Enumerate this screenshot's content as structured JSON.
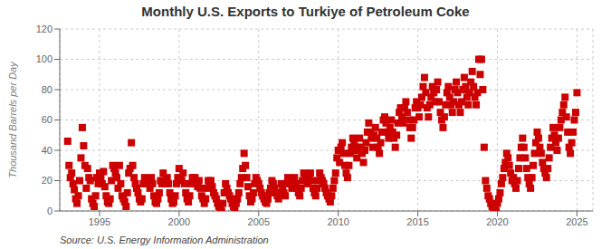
{
  "chart_data": {
    "type": "scatter",
    "title": "Monthly U.S. Exports to Turkiye of Petroleum Coke",
    "ylabel": "Thousand Barrels per Day",
    "annotations": [
      "Source: U.S. Energy Information Administration"
    ],
    "color": "#CC0000",
    "marker": "square",
    "grid": true,
    "xlim": [
      1992.5,
      2026.0
    ],
    "ylim": [
      0,
      120
    ],
    "xticks": [
      1995,
      2000,
      2005,
      2010,
      2015,
      2020,
      2025
    ],
    "yticks": [
      0,
      20,
      40,
      60,
      80,
      100,
      120
    ],
    "x": [
      1993.0,
      1993.083,
      1993.167,
      1993.25,
      1993.333,
      1993.417,
      1993.5,
      1993.583,
      1993.667,
      1993.75,
      1993.833,
      1993.917,
      1994.0,
      1994.083,
      1994.167,
      1994.25,
      1994.333,
      1994.417,
      1994.5,
      1994.583,
      1994.667,
      1994.75,
      1994.833,
      1994.917,
      1995.0,
      1995.083,
      1995.167,
      1995.25,
      1995.333,
      1995.417,
      1995.5,
      1995.583,
      1995.667,
      1995.75,
      1995.833,
      1995.917,
      1996.0,
      1996.083,
      1996.167,
      1996.25,
      1996.333,
      1996.417,
      1996.5,
      1996.583,
      1996.667,
      1996.75,
      1996.833,
      1996.917,
      1997.0,
      1997.083,
      1997.167,
      1997.25,
      1997.333,
      1997.417,
      1997.5,
      1997.583,
      1997.667,
      1997.75,
      1997.833,
      1997.917,
      1998.0,
      1998.083,
      1998.167,
      1998.25,
      1998.333,
      1998.417,
      1998.5,
      1998.583,
      1998.667,
      1998.75,
      1998.833,
      1998.917,
      1999.0,
      1999.083,
      1999.167,
      1999.25,
      1999.333,
      1999.417,
      1999.5,
      1999.583,
      1999.667,
      1999.75,
      1999.833,
      1999.917,
      2000.0,
      2000.083,
      2000.167,
      2000.25,
      2000.333,
      2000.417,
      2000.5,
      2000.583,
      2000.667,
      2000.75,
      2000.833,
      2000.917,
      2001.0,
      2001.083,
      2001.167,
      2001.25,
      2001.333,
      2001.417,
      2001.5,
      2001.583,
      2001.667,
      2001.75,
      2001.833,
      2001.917,
      2002.0,
      2002.083,
      2002.167,
      2002.25,
      2002.333,
      2002.417,
      2002.5,
      2002.583,
      2002.667,
      2002.75,
      2002.833,
      2002.917,
      2003.0,
      2003.083,
      2003.167,
      2003.25,
      2003.333,
      2003.417,
      2003.5,
      2003.583,
      2003.667,
      2003.75,
      2003.833,
      2003.917,
      2004.0,
      2004.083,
      2004.167,
      2004.25,
      2004.333,
      2004.417,
      2004.5,
      2004.583,
      2004.667,
      2004.75,
      2004.833,
      2004.917,
      2005.0,
      2005.083,
      2005.167,
      2005.25,
      2005.333,
      2005.417,
      2005.5,
      2005.583,
      2005.667,
      2005.75,
      2005.833,
      2005.917,
      2006.0,
      2006.083,
      2006.167,
      2006.25,
      2006.333,
      2006.417,
      2006.5,
      2006.583,
      2006.667,
      2006.75,
      2006.833,
      2006.917,
      2007.0,
      2007.083,
      2007.167,
      2007.25,
      2007.333,
      2007.417,
      2007.5,
      2007.583,
      2007.667,
      2007.75,
      2007.833,
      2007.917,
      2008.0,
      2008.083,
      2008.167,
      2008.25,
      2008.333,
      2008.417,
      2008.5,
      2008.583,
      2008.667,
      2008.75,
      2008.833,
      2008.917,
      2009.0,
      2009.083,
      2009.167,
      2009.25,
      2009.333,
      2009.417,
      2009.5,
      2009.583,
      2009.667,
      2009.75,
      2009.833,
      2009.917,
      2010.0,
      2010.083,
      2010.167,
      2010.25,
      2010.333,
      2010.417,
      2010.5,
      2010.583,
      2010.667,
      2010.75,
      2010.833,
      2010.917,
      2011.0,
      2011.083,
      2011.167,
      2011.25,
      2011.333,
      2011.417,
      2011.5,
      2011.583,
      2011.667,
      2011.75,
      2011.833,
      2011.917,
      2012.0,
      2012.083,
      2012.167,
      2012.25,
      2012.333,
      2012.417,
      2012.5,
      2012.583,
      2012.667,
      2012.75,
      2012.833,
      2012.917,
      2013.0,
      2013.083,
      2013.167,
      2013.25,
      2013.333,
      2013.417,
      2013.5,
      2013.583,
      2013.667,
      2013.75,
      2013.833,
      2013.917,
      2014.0,
      2014.083,
      2014.167,
      2014.25,
      2014.333,
      2014.417,
      2014.5,
      2014.583,
      2014.667,
      2014.75,
      2014.833,
      2014.917,
      2015.0,
      2015.083,
      2015.167,
      2015.25,
      2015.333,
      2015.417,
      2015.5,
      2015.583,
      2015.667,
      2015.75,
      2015.833,
      2015.917,
      2016.0,
      2016.083,
      2016.167,
      2016.25,
      2016.333,
      2016.417,
      2016.5,
      2016.583,
      2016.667,
      2016.75,
      2016.833,
      2016.917,
      2017.0,
      2017.083,
      2017.167,
      2017.25,
      2017.333,
      2017.417,
      2017.5,
      2017.583,
      2017.667,
      2017.75,
      2017.833,
      2017.917,
      2018.0,
      2018.083,
      2018.167,
      2018.25,
      2018.333,
      2018.417,
      2018.5,
      2018.583,
      2018.667,
      2018.75,
      2018.833,
      2018.917,
      2019.0,
      2019.083,
      2019.167,
      2019.25,
      2019.333,
      2019.417,
      2019.5,
      2019.583,
      2019.667,
      2019.75,
      2019.833,
      2019.917,
      2020.0,
      2020.083,
      2020.167,
      2020.25,
      2020.333,
      2020.417,
      2020.5,
      2020.583,
      2020.667,
      2020.75,
      2020.833,
      2020.917,
      2021.0,
      2021.083,
      2021.167,
      2021.25,
      2021.333,
      2021.417,
      2021.5,
      2021.583,
      2021.667,
      2021.75,
      2021.833,
      2021.917,
      2022.0,
      2022.083,
      2022.167,
      2022.25,
      2022.333,
      2022.417,
      2022.5,
      2022.583,
      2022.667,
      2022.75,
      2022.833,
      2022.917,
      2023.0,
      2023.083,
      2023.167,
      2023.25,
      2023.333,
      2023.417,
      2023.5,
      2023.583,
      2023.667,
      2023.75,
      2023.833,
      2023.917,
      2024.0,
      2024.083,
      2024.167,
      2024.25,
      2024.333,
      2024.417,
      2024.5,
      2024.583,
      2024.667,
      2024.75,
      2024.833,
      2024.917,
      2025.0
    ],
    "values": [
      46,
      30,
      22,
      25,
      18,
      14,
      8,
      5,
      10,
      20,
      35,
      55,
      43,
      30,
      15,
      28,
      22,
      20,
      8,
      5,
      3,
      10,
      22,
      18,
      25,
      22,
      18,
      26,
      16,
      10,
      6,
      5,
      8,
      20,
      30,
      28,
      25,
      22,
      15,
      30,
      18,
      10,
      8,
      6,
      3,
      12,
      25,
      28,
      45,
      30,
      22,
      18,
      15,
      12,
      8,
      6,
      8,
      18,
      22,
      18,
      20,
      18,
      15,
      22,
      18,
      10,
      6,
      5,
      8,
      12,
      20,
      18,
      25,
      20,
      18,
      22,
      18,
      12,
      8,
      5,
      6,
      10,
      18,
      22,
      28,
      22,
      20,
      25,
      18,
      12,
      8,
      6,
      10,
      18,
      22,
      20,
      22,
      18,
      16,
      20,
      15,
      10,
      8,
      5,
      8,
      15,
      20,
      18,
      20,
      16,
      12,
      10,
      8,
      5,
      3,
      1,
      0,
      5,
      12,
      18,
      15,
      12,
      10,
      8,
      5,
      3,
      2,
      5,
      8,
      12,
      18,
      22,
      28,
      38,
      30,
      22,
      16,
      10,
      6,
      8,
      12,
      18,
      22,
      20,
      18,
      15,
      12,
      10,
      8,
      6,
      5,
      8,
      12,
      15,
      20,
      18,
      15,
      12,
      10,
      8,
      12,
      18,
      15,
      12,
      10,
      18,
      22,
      20,
      18,
      15,
      20,
      22,
      18,
      15,
      12,
      10,
      15,
      20,
      25,
      22,
      20,
      18,
      22,
      25,
      20,
      15,
      12,
      10,
      15,
      20,
      25,
      22,
      20,
      18,
      15,
      12,
      10,
      8,
      6,
      10,
      15,
      20,
      25,
      35,
      40,
      32,
      42,
      45,
      38,
      30,
      25,
      22,
      30,
      38,
      42,
      48,
      45,
      40,
      35,
      42,
      48,
      42,
      38,
      32,
      40,
      45,
      52,
      58,
      52,
      48,
      42,
      50,
      55,
      48,
      42,
      38,
      45,
      52,
      60,
      62,
      58,
      52,
      48,
      55,
      60,
      52,
      48,
      42,
      50,
      58,
      65,
      68,
      62,
      58,
      68,
      72,
      65,
      60,
      55,
      48,
      55,
      60,
      68,
      72,
      68,
      62,
      70,
      75,
      82,
      88,
      78,
      68,
      62,
      70,
      75,
      82,
      78,
      72,
      80,
      85,
      72,
      65,
      60,
      55,
      62,
      70,
      78,
      82,
      75,
      70,
      65,
      72,
      80,
      85,
      78,
      70,
      65,
      72,
      80,
      88,
      82,
      75,
      70,
      78,
      85,
      92,
      82,
      75,
      70,
      78,
      100,
      90,
      100,
      80,
      42,
      20,
      15,
      10,
      8,
      5,
      3,
      2,
      1,
      0,
      5,
      8,
      12,
      18,
      22,
      28,
      32,
      38,
      35,
      30,
      25,
      20,
      22,
      18,
      15,
      20,
      28,
      35,
      42,
      48,
      42,
      35,
      28,
      22,
      18,
      15,
      22,
      30,
      38,
      45,
      52,
      48,
      42,
      38,
      32,
      28,
      25,
      22,
      28,
      35,
      42,
      48,
      55,
      50,
      45,
      40,
      48,
      55,
      60,
      65,
      70,
      75,
      62,
      52,
      42,
      38,
      45,
      52,
      60,
      65,
      78
    ]
  }
}
